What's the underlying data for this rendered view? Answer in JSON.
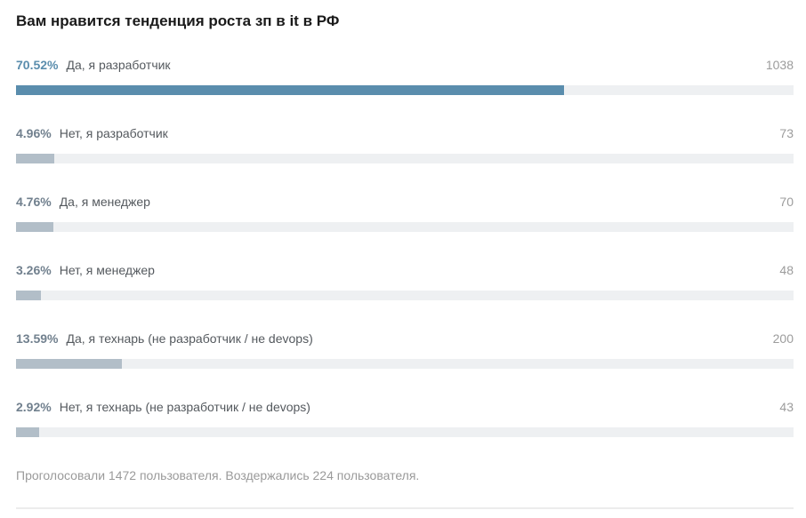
{
  "poll": {
    "title": "Вам нравится тенденция роста зп в it в РФ",
    "options": [
      {
        "percent": "70.52%",
        "label": "Да, я разработчик",
        "votes": "1038",
        "value": 70.52,
        "highlighted": true
      },
      {
        "percent": "4.96%",
        "label": "Нет, я разработчик",
        "votes": "73",
        "value": 4.96,
        "highlighted": false
      },
      {
        "percent": "4.76%",
        "label": "Да, я менеджер",
        "votes": "70",
        "value": 4.76,
        "highlighted": false
      },
      {
        "percent": "3.26%",
        "label": "Нет, я менеджер",
        "votes": "48",
        "value": 3.26,
        "highlighted": false
      },
      {
        "percent": "13.59%",
        "label": "Да, я технарь (не разработчик / не devops)",
        "votes": "200",
        "value": 13.59,
        "highlighted": false
      },
      {
        "percent": "2.92%",
        "label": "Нет, я технарь (не разработчик / не devops)",
        "votes": "43",
        "value": 2.92,
        "highlighted": false
      }
    ],
    "footer": "Проголосовали 1472 пользователя. Воздержались 224 пользователя.",
    "colors": {
      "highlight": "#5a8dad",
      "bar_gray": "#b2bec8",
      "track": "#eef0f2",
      "percent_gray": "#71808e",
      "label_text": "#54595e",
      "count_text": "#9c9c9c",
      "footer_text": "#9a9a9a"
    }
  },
  "chart_data": {
    "type": "bar",
    "orientation": "horizontal",
    "title": "Вам нравится тенденция роста зп в it в РФ",
    "categories": [
      "Да, я разработчик",
      "Нет, я разработчик",
      "Да, я менеджер",
      "Нет, я менеджер",
      "Да, я технарь (не разработчик / не devops)",
      "Нет, я технарь (не разработчик / не devops)"
    ],
    "series": [
      {
        "name": "percent",
        "values": [
          70.52,
          4.96,
          4.76,
          3.26,
          13.59,
          2.92
        ]
      },
      {
        "name": "votes",
        "values": [
          1038,
          73,
          70,
          48,
          200,
          43
        ]
      }
    ],
    "xlim": [
      0,
      100
    ],
    "grid": false,
    "legend": "none",
    "highlighted_index": 0,
    "total_voted": 1472,
    "abstained": 224,
    "footnote": "Проголосовали 1472 пользователя. Воздержались 224 пользователя."
  }
}
